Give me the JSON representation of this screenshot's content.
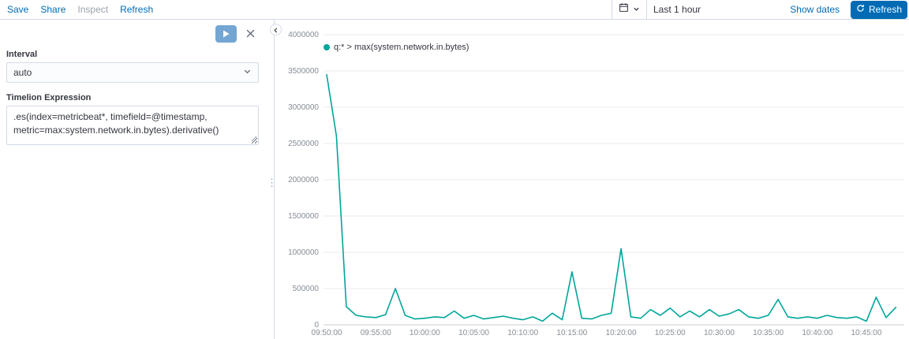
{
  "top_nav": {
    "items": [
      {
        "label": "Save",
        "enabled": true
      },
      {
        "label": "Share",
        "enabled": true
      },
      {
        "label": "Inspect",
        "enabled": false
      },
      {
        "label": "Refresh",
        "enabled": true
      }
    ]
  },
  "time_picker": {
    "range_label": "Last 1 hour",
    "show_dates_label": "Show dates",
    "refresh_button_label": "Refresh",
    "icons": {
      "calendar": "calendar-icon",
      "chevron_down": "chevron-down-icon",
      "refresh": "refresh-icon"
    }
  },
  "editor": {
    "interval_label": "Interval",
    "interval_value": "auto",
    "expression_label": "Timelion Expression",
    "expression_value": ".es(index=metricbeat*, timefield=@timestamp, metric=max:system.network.in.bytes).derivative()",
    "icons": {
      "run": "play-icon",
      "close": "close-icon",
      "collapse": "collapse-left-icon",
      "resize": "drag-dots-icon"
    }
  },
  "colors": {
    "primary_blue": "#006BB4",
    "series_teal": "#00A69B",
    "disabled_text": "#9aa2ab",
    "border": "#d3dae6",
    "grid": "#e9ebee"
  },
  "chart_data": {
    "type": "line",
    "title": "",
    "xlabel": "",
    "ylabel": "",
    "legend_position": "top-left",
    "grid": "horizontal",
    "x_start": "09:50:00",
    "x_step_minutes": 1,
    "x_ticks": [
      "09:50:00",
      "09:55:00",
      "10:00:00",
      "10:05:00",
      "10:10:00",
      "10:15:00",
      "10:20:00",
      "10:25:00",
      "10:30:00",
      "10:35:00",
      "10:40:00",
      "10:45:00"
    ],
    "y_ticks": [
      0,
      500000,
      1000000,
      1500000,
      2000000,
      2500000,
      3000000,
      3500000,
      4000000
    ],
    "ylim": [
      0,
      4000000
    ],
    "legend": [
      {
        "label": "q:* > max(system.network.in.bytes)",
        "color": "#00A69B"
      }
    ],
    "series": [
      {
        "name": "q:* > max(system.network.in.bytes)",
        "color": "#00A69B",
        "values": [
          3450000,
          2600000,
          250000,
          130000,
          110000,
          100000,
          140000,
          500000,
          130000,
          80000,
          90000,
          110000,
          100000,
          190000,
          90000,
          130000,
          80000,
          100000,
          120000,
          90000,
          70000,
          110000,
          50000,
          160000,
          70000,
          730000,
          90000,
          80000,
          130000,
          160000,
          1050000,
          110000,
          90000,
          210000,
          130000,
          230000,
          110000,
          190000,
          110000,
          210000,
          120000,
          150000,
          210000,
          110000,
          90000,
          130000,
          350000,
          110000,
          90000,
          110000,
          90000,
          130000,
          100000,
          90000,
          110000,
          50000,
          380000,
          100000,
          240000
        ]
      }
    ]
  }
}
